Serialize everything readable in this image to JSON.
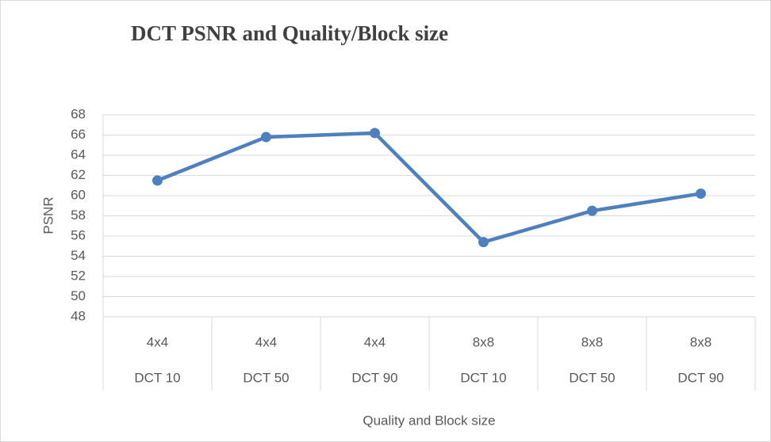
{
  "chart_data": {
    "type": "line",
    "title": "DCT PSNR and Quality/Block size",
    "x_label": "Quality and Block size",
    "y_label": "PSNR",
    "categories": [
      [
        "4x4",
        "DCT 10"
      ],
      [
        "4x4",
        "DCT 50"
      ],
      [
        "4x4",
        "DCT 90"
      ],
      [
        "8x8",
        "DCT 10"
      ],
      [
        "8x8",
        "DCT 50"
      ],
      [
        "8x8",
        "DCT 90"
      ]
    ],
    "series": [
      {
        "name": "PSNR",
        "color": "#4e7fbf",
        "values": [
          61.5,
          65.8,
          66.2,
          55.4,
          58.5,
          60.2
        ]
      }
    ],
    "ylim": [
      48,
      68
    ],
    "yticks": [
      48,
      50,
      52,
      54,
      56,
      58,
      60,
      62,
      64,
      66,
      68
    ],
    "grid": true
  }
}
